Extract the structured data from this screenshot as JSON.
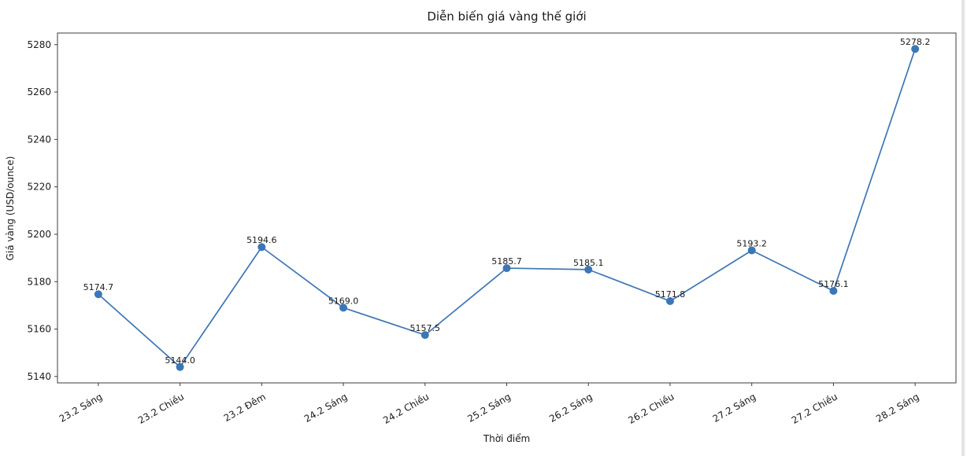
{
  "page": {
    "background_color": "#ffffff",
    "right_edge_strip_color": "#e4e4e4"
  },
  "chart_data": {
    "type": "line",
    "title": "Diễn biến giá vàng thế giới",
    "xlabel": "Thời điểm",
    "ylabel": "Giá vàng (USD/ounce)",
    "categories": [
      "23.2 Sáng",
      "23.2 Chiều",
      "23.2 Đêm",
      "24.2 Sáng",
      "24.2 Chiều",
      "25.2 Sáng",
      "26.2 Sáng",
      "26.2 Chiều",
      "27.2 Sáng",
      "27.2 Chiều",
      "28.2 Sáng"
    ],
    "values": [
      5174.7,
      5144.0,
      5194.6,
      5169.0,
      5157.5,
      5185.7,
      5185.1,
      5171.8,
      5193.2,
      5176.1,
      5278.2
    ],
    "point_labels": [
      "5174.7",
      "5144.0",
      "5194.6",
      "5169.0",
      "5157.5",
      "5185.7",
      "5185.1",
      "5171.8",
      "5193.2",
      "5176.1",
      "5278.2"
    ],
    "y_ticks": [
      5140,
      5160,
      5180,
      5200,
      5220,
      5240,
      5260,
      5280
    ],
    "ylim": [
      5137.3,
      5284.9
    ],
    "x_tick_rotation": 30,
    "line_color": "#3d76b5",
    "marker": "circle",
    "marker_radius": 5,
    "spine_color": "#3c3c3c",
    "grid": false,
    "legend_position": "none"
  }
}
